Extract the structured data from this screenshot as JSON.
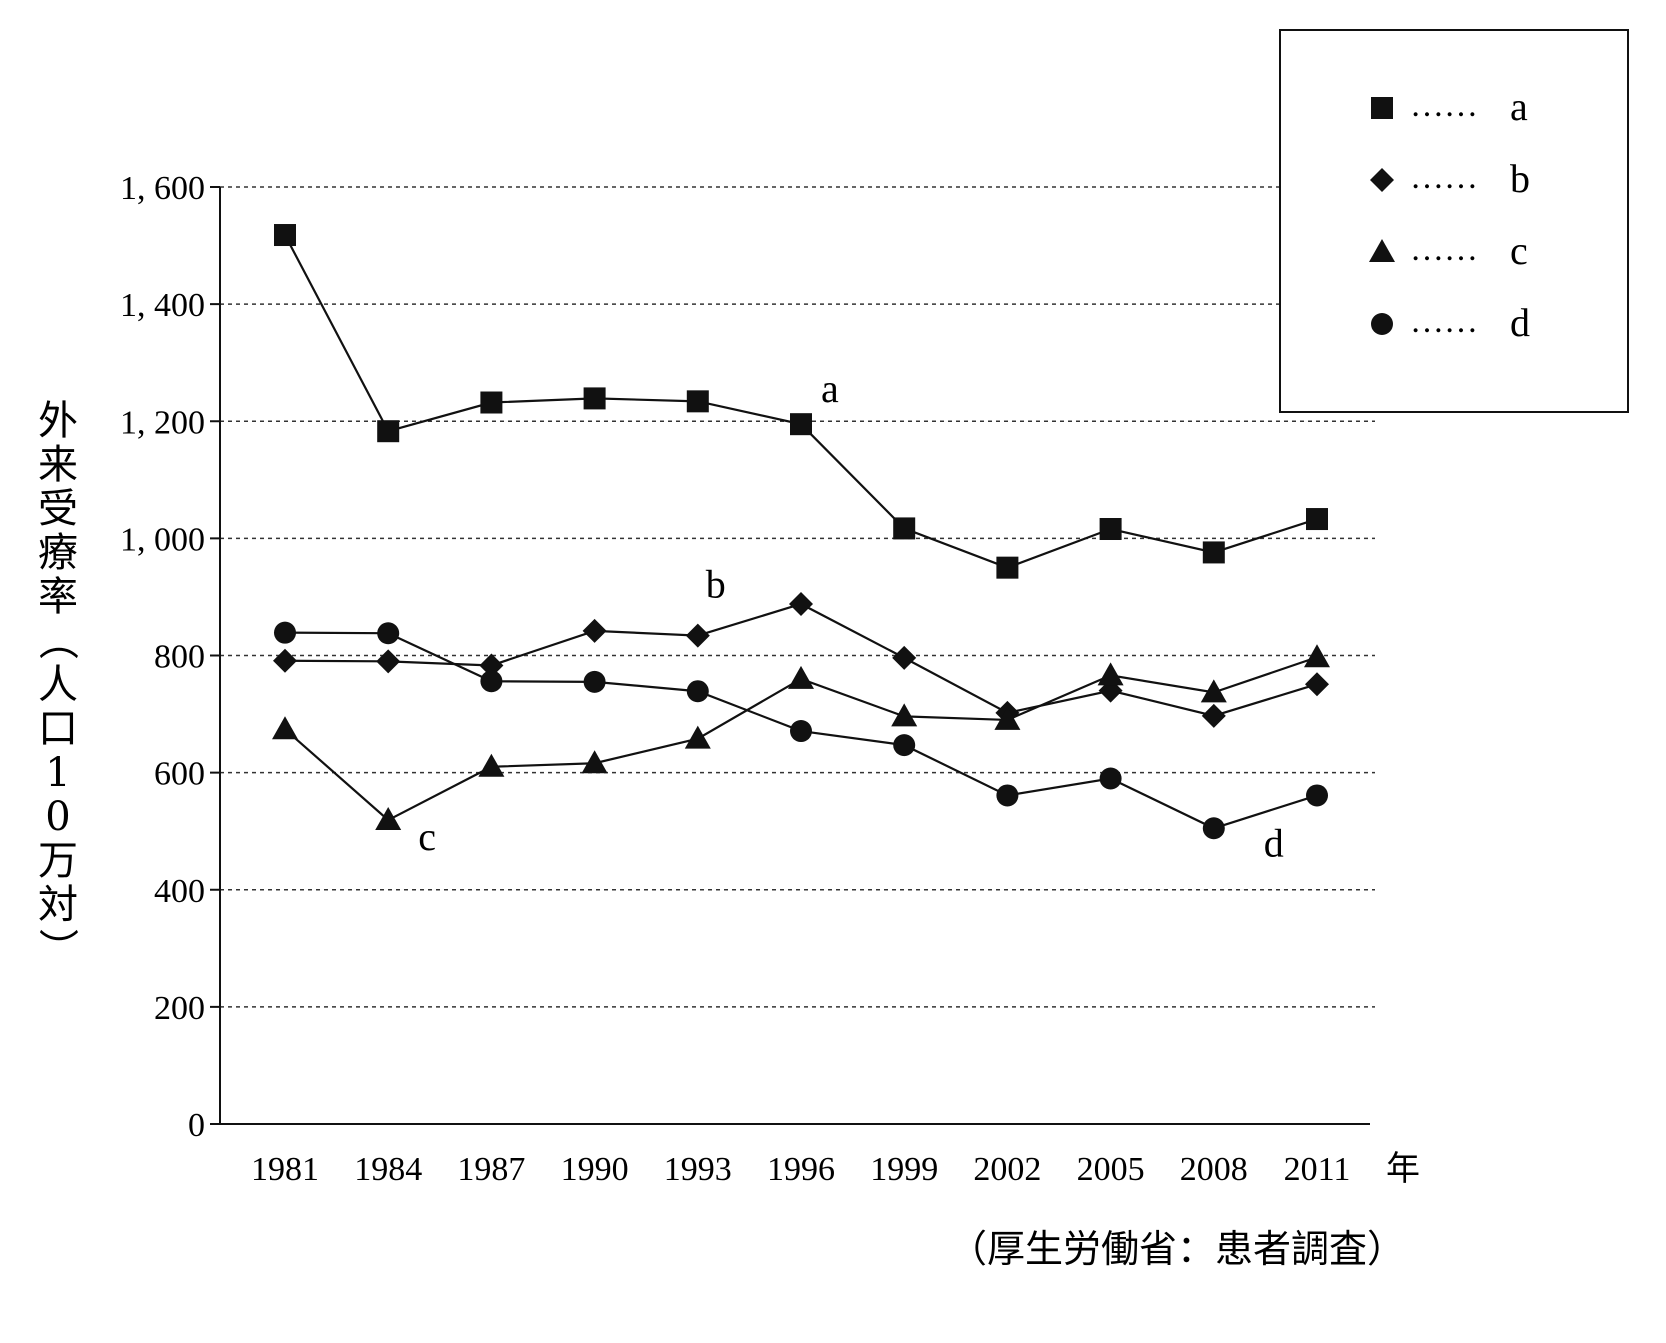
{
  "chart_data": {
    "type": "line",
    "ylabel": "外来受療率（人口10万対）",
    "x_unit": "年",
    "source": "（厚生労働省：患者調査）",
    "x": [
      "1981",
      "1984",
      "1987",
      "1990",
      "1993",
      "1996",
      "1999",
      "2002",
      "2005",
      "2008",
      "2011"
    ],
    "ylim": [
      0,
      1600
    ],
    "yticks": [
      0,
      200,
      400,
      600,
      800,
      1000,
      1200,
      1400,
      1600
    ],
    "ytick_labels": [
      "0",
      "200",
      "400",
      "600",
      "800",
      "1, 000",
      "1, 200",
      "1, 400",
      "1, 600"
    ],
    "grid": "horizontal-dashed",
    "legend_placement": "top-right",
    "series": [
      {
        "name": "a",
        "marker": "square",
        "values": [
          1518,
          1183,
          1232,
          1239,
          1234,
          1195,
          1017,
          950,
          1016,
          976,
          1033
        ]
      },
      {
        "name": "b",
        "marker": "diamond",
        "values": [
          791,
          790,
          783,
          842,
          834,
          888,
          796,
          702,
          740,
          697,
          751
        ]
      },
      {
        "name": "c",
        "marker": "triangle",
        "values": [
          674,
          519,
          610,
          616,
          658,
          760,
          696,
          690,
          766,
          737,
          797
        ]
      },
      {
        "name": "d",
        "marker": "circle",
        "values": [
          839,
          838,
          756,
          755,
          739,
          671,
          647,
          561,
          590,
          505,
          561
        ]
      }
    ],
    "annotations": [
      {
        "text": "a",
        "series": "a"
      },
      {
        "text": "b",
        "series": "b"
      },
      {
        "text": "c",
        "series": "c"
      },
      {
        "text": "d",
        "series": "d"
      }
    ]
  },
  "legend": {
    "items": [
      {
        "marker": "square",
        "dots": "……",
        "label": "a"
      },
      {
        "marker": "diamond",
        "dots": "……",
        "label": "b"
      },
      {
        "marker": "triangle",
        "dots": "……",
        "label": "c"
      },
      {
        "marker": "circle",
        "dots": "……",
        "label": "d"
      }
    ]
  },
  "colors": {
    "ink": "#111111",
    "grid": "#333333"
  }
}
